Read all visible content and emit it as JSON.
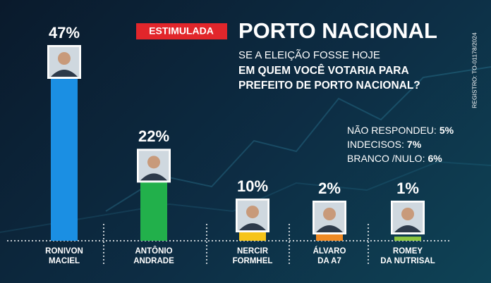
{
  "badge": "ESTIMULADA",
  "registry": "REGISTRO: TO-01178/2024",
  "chart_data": {
    "type": "bar",
    "title": "PORTO NACIONAL",
    "subtitle": "SE A ELEIÇÃO FOSSE HOJE",
    "question": [
      "EM QUEM VOCÊ VOTARIA PARA",
      "PREFEITO DE PORTO NACIONAL?"
    ],
    "categories": [
      "RONIVON\nMACIEL",
      "ANTÔNIO\nANDRADE",
      "NERCIR\nFORMHEL",
      "ÁLVARO\nDA A7",
      "ROMEY\nDA NUTRISAL"
    ],
    "values": [
      47,
      22,
      10,
      2,
      1
    ],
    "value_labels": [
      "47%",
      "22%",
      "10%",
      "2%",
      "1%"
    ],
    "colors": [
      "#1b8fe3",
      "#22b04b",
      "#f6c419",
      "#f08a24",
      "#8cc63f"
    ],
    "others": {
      "labels": [
        "NÃO RESPONDEU:",
        "INDECISOS:",
        "BRANCO /NULO:"
      ],
      "values": [
        5,
        7,
        6
      ],
      "value_labels": [
        "5%",
        "7%",
        "6%"
      ]
    }
  }
}
